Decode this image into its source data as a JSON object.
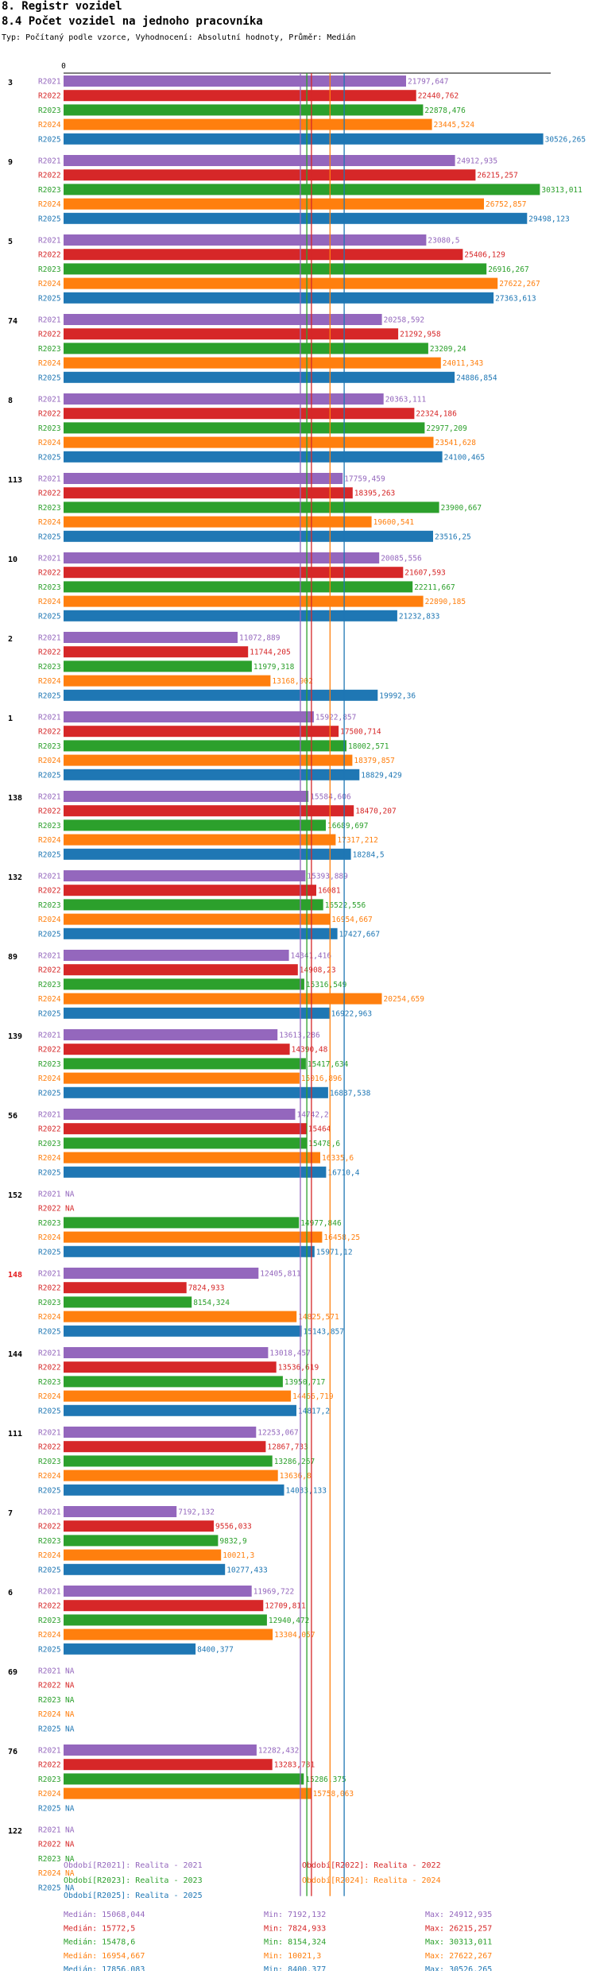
{
  "header": {
    "title": "8. Registr vozidel",
    "subtitle": "8.4 Počet vozidel na jednoho pracovníka",
    "meta": "Typ: Počítaný podle vzorce, Vyhodnocení: Absolutní hodnoty, Průměr: Medián"
  },
  "chart_data": {
    "type": "bar",
    "orientation": "horizontal",
    "title": "8.4 Počet vozidel na jednoho pracovníka",
    "x_axis_tick": "0",
    "xlim": [
      0,
      31000
    ],
    "series": [
      {
        "key": "R2021",
        "color": "#9467bd",
        "legend": "Období[R2021]: Realita - 2021",
        "median_label": "Medián: 15068,044",
        "median": 15068.044,
        "min_label": "Min: 7192,132",
        "max_label": "Max: 24912,935"
      },
      {
        "key": "R2022",
        "color": "#d62728",
        "legend": "Období[R2022]: Realita - 2022",
        "median_label": "Medián: 15772,5",
        "median": 15772.5,
        "min_label": "Min: 7824,933",
        "max_label": "Max: 26215,257"
      },
      {
        "key": "R2023",
        "color": "#2ca02c",
        "legend": "Období[R2023]: Realita - 2023",
        "median_label": "Medián: 15478,6",
        "median": 15478.6,
        "min_label": "Min: 8154,324",
        "max_label": "Max: 30313,011"
      },
      {
        "key": "R2024",
        "color": "#ff7f0e",
        "legend": "Období[R2024]: Realita - 2024",
        "median_label": "Medián: 16954,667",
        "median": 16954.667,
        "min_label": "Min: 10021,3",
        "max_label": "Max: 27622,267"
      },
      {
        "key": "R2025",
        "color": "#1f77b4",
        "legend": "Období[R2025]: Realita - 2025",
        "median_label": "Medián: 17856,083",
        "median": 17856.083,
        "min_label": "Min: 8400,377",
        "max_label": "Max: 30526,265"
      }
    ],
    "groups": [
      {
        "label": "3",
        "highlight": false,
        "values": [
          21797.647,
          22440.762,
          22878.476,
          23445.524,
          30526.265
        ],
        "labels": [
          "21797,647",
          "22440,762",
          "22878,476",
          "23445,524",
          "30526,265"
        ]
      },
      {
        "label": "9",
        "highlight": false,
        "values": [
          24912.935,
          26215.257,
          30313.011,
          26752.857,
          29498.123
        ],
        "labels": [
          "24912,935",
          "26215,257",
          "30313,011",
          "26752,857",
          "29498,123"
        ]
      },
      {
        "label": "5",
        "highlight": false,
        "values": [
          23080.5,
          25406.129,
          26916.267,
          27622.267,
          27363.613
        ],
        "labels": [
          "23080,5",
          "25406,129",
          "26916,267",
          "27622,267",
          "27363,613"
        ]
      },
      {
        "label": "74",
        "highlight": false,
        "values": [
          20258.592,
          21292.958,
          23209.24,
          24011.343,
          24886.854
        ],
        "labels": [
          "20258,592",
          "21292,958",
          "23209,24",
          "24011,343",
          "24886,854"
        ]
      },
      {
        "label": "8",
        "highlight": false,
        "values": [
          20363.111,
          22324.186,
          22977.209,
          23541.628,
          24100.465
        ],
        "labels": [
          "20363,111",
          "22324,186",
          "22977,209",
          "23541,628",
          "24100,465"
        ]
      },
      {
        "label": "113",
        "highlight": false,
        "values": [
          17759.459,
          18395.263,
          23900.667,
          19600.541,
          23516.25
        ],
        "labels": [
          "17759,459",
          "18395,263",
          "23900,667",
          "19600,541",
          "23516,25"
        ]
      },
      {
        "label": "10",
        "highlight": false,
        "values": [
          20085.556,
          21607.593,
          22211.667,
          22890.185,
          21232.833
        ],
        "labels": [
          "20085,556",
          "21607,593",
          "22211,667",
          "22890,185",
          "21232,833"
        ]
      },
      {
        "label": "2",
        "highlight": false,
        "values": [
          11072.889,
          11744.205,
          11979.318,
          13168.902,
          19992.36
        ],
        "labels": [
          "11072,889",
          "11744,205",
          "11979,318",
          "13168,902",
          "19992,36"
        ]
      },
      {
        "label": "1",
        "highlight": false,
        "values": [
          15922.857,
          17500.714,
          18002.571,
          18379.857,
          18829.429
        ],
        "labels": [
          "15922,857",
          "17500,714",
          "18002,571",
          "18379,857",
          "18829,429"
        ]
      },
      {
        "label": "138",
        "highlight": false,
        "values": [
          15584.606,
          18470.207,
          16689.697,
          17317.212,
          18284.5
        ],
        "labels": [
          "15584,606",
          "18470,207",
          "16689,697",
          "17317,212",
          "18284,5"
        ]
      },
      {
        "label": "132",
        "highlight": false,
        "values": [
          15393.889,
          16081,
          16522.556,
          16954.667,
          17427.667
        ],
        "labels": [
          "15393,889",
          "16081",
          "16522,556",
          "16954,667",
          "17427,667"
        ]
      },
      {
        "label": "89",
        "highlight": false,
        "values": [
          14341.416,
          14908.23,
          15316.549,
          20254.659,
          16922.963
        ],
        "labels": [
          "14341,416",
          "14908,23",
          "15316,549",
          "20254,659",
          "16922,963"
        ]
      },
      {
        "label": "139",
        "highlight": false,
        "values": [
          13613.286,
          14390.48,
          15417.634,
          15016.896,
          16837.538
        ],
        "labels": [
          "13613,286",
          "14390,48",
          "15417,634",
          "15016,896",
          "16837,538"
        ]
      },
      {
        "label": "56",
        "highlight": false,
        "values": [
          14742.2,
          15464,
          15478.6,
          16335.6,
          16710.4
        ],
        "labels": [
          "14742,2",
          "15464",
          "15478,6",
          "16335,6",
          "16710,4"
        ]
      },
      {
        "label": "152",
        "highlight": false,
        "values": [
          null,
          null,
          14977.846,
          16458.25,
          15971.12
        ],
        "labels": [
          "NA",
          "NA",
          "14977,846",
          "16458,25",
          "15971,12"
        ]
      },
      {
        "label": "148",
        "highlight": true,
        "values": [
          12405.811,
          7824.933,
          8154.324,
          14825.571,
          15143.857
        ],
        "labels": [
          "12405,811",
          "7824,933",
          "8154,324",
          "14825,571",
          "15143,857"
        ]
      },
      {
        "label": "144",
        "highlight": false,
        "values": [
          13018.457,
          13536.619,
          13950.717,
          14466.719,
          14817.2
        ],
        "labels": [
          "13018,457",
          "13536,619",
          "13950,717",
          "14466,719",
          "14817,2"
        ]
      },
      {
        "label": "111",
        "highlight": false,
        "values": [
          12253.067,
          12867.733,
          13286.267,
          13636.8,
          14033.133
        ],
        "labels": [
          "12253,067",
          "12867,733",
          "13286,267",
          "13636,8",
          "14033,133"
        ]
      },
      {
        "label": "7",
        "highlight": false,
        "values": [
          7192.132,
          9556.033,
          9832.9,
          10021.3,
          10277.433
        ],
        "labels": [
          "7192,132",
          "9556,033",
          "9832,9",
          "10021,3",
          "10277,433"
        ]
      },
      {
        "label": "6",
        "highlight": false,
        "values": [
          11969.722,
          12709.811,
          12940.472,
          13304.057,
          8400.377
        ],
        "labels": [
          "11969,722",
          "12709,811",
          "12940,472",
          "13304,057",
          "8400,377"
        ]
      },
      {
        "label": "69",
        "highlight": false,
        "values": [
          null,
          null,
          null,
          null,
          null
        ],
        "labels": [
          "NA",
          "NA",
          "NA",
          "NA",
          "NA"
        ]
      },
      {
        "label": "76",
        "highlight": false,
        "values": [
          12282.432,
          13283.781,
          15286.375,
          15758.063,
          null
        ],
        "labels": [
          "12282,432",
          "13283,781",
          "15286,375",
          "15758,063",
          "NA"
        ]
      },
      {
        "label": "122",
        "highlight": false,
        "values": [
          null,
          null,
          null,
          null,
          null
        ],
        "labels": [
          "NA",
          "NA",
          "NA",
          "NA",
          "NA"
        ]
      }
    ]
  }
}
